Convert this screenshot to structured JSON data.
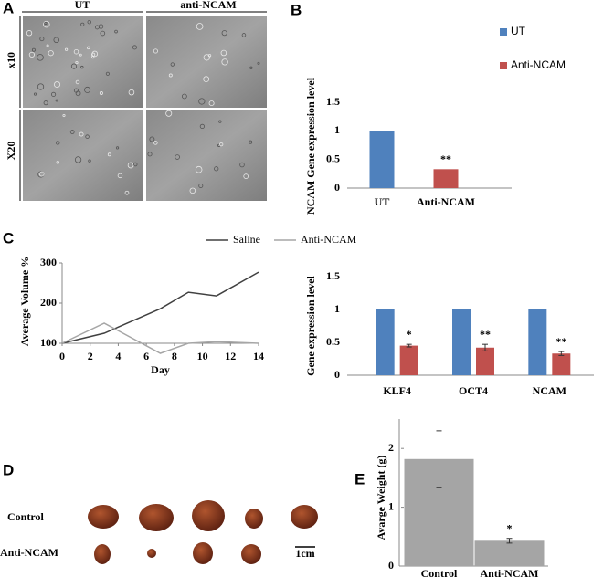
{
  "panels": {
    "a": "A",
    "b": "B",
    "c": "C",
    "d": "D",
    "e": "E"
  },
  "figure_a": {
    "columns": [
      "UT",
      "anti-NCAM"
    ],
    "rows": [
      "x10",
      "X20"
    ]
  },
  "figure_d": {
    "rows": [
      "Control",
      "Anti-NCAM"
    ],
    "scale": "1cm"
  },
  "chart_data": [
    {
      "type": "bar",
      "ylabel": "NCAM Gene expression level",
      "categories": [
        "UT",
        "Anti-NCAM"
      ],
      "values": [
        1,
        0.33
      ],
      "colors": [
        "#4f81bd",
        "#c0504d"
      ],
      "legend": true,
      "significance": [
        null,
        "**"
      ],
      "ylim": [
        0,
        1.5
      ],
      "yticks": [
        0,
        0.5,
        1,
        1.5
      ]
    },
    {
      "type": "line",
      "xlabel": "Day",
      "ylabel": "Average Volume %",
      "x": [
        0,
        3,
        7,
        9,
        11,
        14
      ],
      "series": [
        {
          "name": "Saline",
          "color": "#404040",
          "values": [
            100,
            125,
            186,
            227,
            218,
            277
          ]
        },
        {
          "name": "Anti-NCAM",
          "color": "#a6a6a6",
          "values": [
            100,
            150,
            75,
            100,
            104,
            100
          ]
        }
      ],
      "xlim": [
        0,
        14
      ],
      "xticks": [
        0,
        2,
        4,
        6,
        8,
        10,
        12,
        14
      ],
      "ylim": [
        100,
        300
      ],
      "yticks": [
        100,
        200,
        300
      ]
    },
    {
      "type": "bar",
      "ylabel": "Gene expression level",
      "categories": [
        "KLF4",
        "OCT4",
        "NCAM"
      ],
      "series": [
        {
          "color": "#4f81bd",
          "values": [
            1,
            1,
            1
          ]
        },
        {
          "color": "#c0504d",
          "values": [
            0.45,
            0.42,
            0.33
          ],
          "errors": [
            0.02,
            0.05,
            0.03
          ],
          "significance": [
            "*",
            "**",
            "**"
          ]
        }
      ],
      "ylim": [
        0,
        1.5
      ],
      "yticks": [
        0,
        0.5,
        1,
        1.5
      ]
    },
    {
      "type": "bar",
      "ylabel": "Avarge Weight (g)",
      "categories": [
        "Control",
        "Anti-NCAM"
      ],
      "values": [
        1.82,
        0.43
      ],
      "errors": [
        0.48,
        0.04
      ],
      "color": "#a5a5a5",
      "significance": [
        null,
        "*"
      ],
      "ylim": [
        0,
        2.5
      ],
      "yticks": [
        0,
        1,
        2
      ]
    }
  ]
}
